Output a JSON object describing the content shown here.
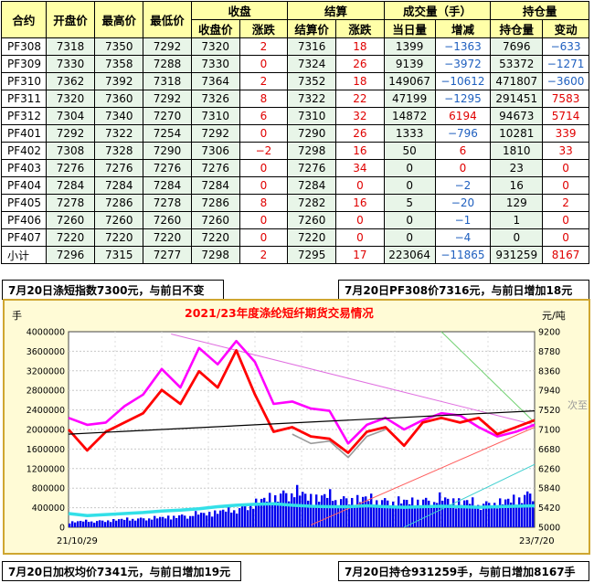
{
  "table": {
    "header_top": {
      "contract": "合约",
      "open": "开盘价",
      "high": "最高价",
      "low": "最低价",
      "close_group": "收盘",
      "settle_group": "结算",
      "volume_group": "成交量（手）",
      "oi_group": "持仓量"
    },
    "header_sub": {
      "close_price": "收盘价",
      "close_change": "涨跌",
      "settle_price": "结算价",
      "settle_change": "涨跌",
      "volume_today": "当日量",
      "volume_change": "增减",
      "oi": "持仓量",
      "oi_change": "变动"
    },
    "rows": [
      {
        "contract": "PF308",
        "open": "7318",
        "high": "7350",
        "low": "7292",
        "close": "7320",
        "close_chg": "2",
        "settle": "7316",
        "settle_chg": "18",
        "vol": "1399",
        "vol_chg": "−1363",
        "oi": "7696",
        "oi_chg": "−633"
      },
      {
        "contract": "PF309",
        "open": "7330",
        "high": "7358",
        "low": "7288",
        "close": "7330",
        "close_chg": "0",
        "settle": "7324",
        "settle_chg": "26",
        "vol": "9139",
        "vol_chg": "−3972",
        "oi": "53372",
        "oi_chg": "−1271"
      },
      {
        "contract": "PF310",
        "open": "7362",
        "high": "7392",
        "low": "7318",
        "close": "7364",
        "close_chg": "2",
        "settle": "7352",
        "settle_chg": "18",
        "vol": "149067",
        "vol_chg": "−10612",
        "oi": "471807",
        "oi_chg": "−3600"
      },
      {
        "contract": "PF311",
        "open": "7320",
        "high": "7360",
        "low": "7292",
        "close": "7326",
        "close_chg": "8",
        "settle": "7322",
        "settle_chg": "22",
        "vol": "47199",
        "vol_chg": "−1295",
        "oi": "291451",
        "oi_chg": "7583"
      },
      {
        "contract": "PF312",
        "open": "7304",
        "high": "7340",
        "low": "7270",
        "close": "7310",
        "close_chg": "6",
        "settle": "7310",
        "settle_chg": "32",
        "vol": "14872",
        "vol_chg": "6194",
        "oi": "94673",
        "oi_chg": "5714"
      },
      {
        "contract": "PF401",
        "open": "7292",
        "high": "7322",
        "low": "7254",
        "close": "7292",
        "close_chg": "0",
        "settle": "7290",
        "settle_chg": "26",
        "vol": "1333",
        "vol_chg": "−796",
        "oi": "10281",
        "oi_chg": "339"
      },
      {
        "contract": "PF402",
        "open": "7308",
        "high": "7328",
        "low": "7290",
        "close": "7306",
        "close_chg": "−2",
        "settle": "7298",
        "settle_chg": "16",
        "vol": "50",
        "vol_chg": "6",
        "oi": "1810",
        "oi_chg": "33"
      },
      {
        "contract": "PF403",
        "open": "7276",
        "high": "7276",
        "low": "7276",
        "close": "7276",
        "close_chg": "0",
        "settle": "7276",
        "settle_chg": "34",
        "vol": "0",
        "vol_chg": "0",
        "oi": "23",
        "oi_chg": "0"
      },
      {
        "contract": "PF404",
        "open": "7284",
        "high": "7284",
        "low": "7284",
        "close": "7284",
        "close_chg": "0",
        "settle": "7284",
        "settle_chg": "0",
        "vol": "0",
        "vol_chg": "−2",
        "oi": "16",
        "oi_chg": "0"
      },
      {
        "contract": "PF405",
        "open": "7278",
        "high": "7286",
        "low": "7278",
        "close": "7286",
        "close_chg": "8",
        "settle": "7282",
        "settle_chg": "16",
        "vol": "5",
        "vol_chg": "−20",
        "oi": "129",
        "oi_chg": "2"
      },
      {
        "contract": "PF406",
        "open": "7260",
        "high": "7260",
        "low": "7260",
        "close": "7260",
        "close_chg": "0",
        "settle": "7260",
        "settle_chg": "0",
        "vol": "0",
        "vol_chg": "−1",
        "oi": "1",
        "oi_chg": "0"
      },
      {
        "contract": "PF407",
        "open": "7220",
        "high": "7220",
        "low": "7220",
        "close": "7220",
        "close_chg": "0",
        "settle": "7220",
        "settle_chg": "0",
        "vol": "0",
        "vol_chg": "−4",
        "oi": "0",
        "oi_chg": "0"
      },
      {
        "contract": "小计",
        "open": "7296",
        "high": "7315",
        "low": "7277",
        "close": "7298",
        "close_chg": "2",
        "settle": "7295",
        "settle_chg": "17",
        "vol": "223064",
        "vol_chg": "−11865",
        "oi": "931259",
        "oi_chg": "8167"
      }
    ]
  },
  "banners": {
    "top_left": "7月20日涤短指数7300元，与前日不变",
    "top_right": "7月20日PF308价7316元，与前日增加18元",
    "bottom_left": "7月20日加权均价7341元，与前日增加19元",
    "bottom_right": "7月20日持仓931259手，与前日增加8167手"
  },
  "tooltip_fragment": "次至",
  "colors": {
    "header_bg": "#ffffa8",
    "chart_bg": "#fffbd6",
    "price_red": "#ff0000",
    "magenta": "#ff00ff",
    "gray_line": "#9a9a9a",
    "volume_blue": "#0000ee",
    "oi_cyan": "#33e0e8",
    "trend_black": "#000000"
  },
  "chart_data": {
    "type": "line",
    "title": "2021/23年度涤纶短纤期货交易情况",
    "left_axis_unit": "手",
    "right_axis_unit": "元/吨",
    "left_ticks": [
      "0",
      "400000",
      "800000",
      "1200000",
      "1600000",
      "2000000",
      "2400000",
      "2800000",
      "3200000",
      "3600000",
      "4000000"
    ],
    "right_ticks": [
      "5000",
      "5420",
      "5840",
      "6260",
      "6680",
      "7100",
      "7520",
      "7940",
      "8360",
      "8780",
      "9200"
    ],
    "left_range": [
      0,
      4000000
    ],
    "right_range": [
      5000,
      9200
    ],
    "x_labels": [
      "21/10/29",
      "23/7/20"
    ],
    "x": [
      0,
      4,
      8,
      12,
      16,
      20,
      24,
      28,
      32,
      36,
      40,
      44,
      48,
      52,
      56,
      60,
      64,
      68,
      72,
      76,
      80,
      84,
      88,
      92,
      96,
      100
    ],
    "series": [
      {
        "values": [
          7100,
          6650,
          7050,
          7250,
          7450,
          7950,
          7650,
          8350,
          8000,
          8800,
          7850,
          7050,
          7150,
          6950,
          6900,
          6600,
          7050,
          7150,
          6750,
          7250,
          7350,
          7250,
          7350,
          7000,
          7150,
          7300
        ]
      },
      {
        "values": [
          7350,
          7200,
          7250,
          7600,
          7850,
          8400,
          8000,
          8850,
          8500,
          9000,
          8550,
          7650,
          7700,
          7550,
          7500,
          6800,
          7200,
          7350,
          7100,
          7300,
          7450,
          7400,
          7150,
          6950,
          7050,
          7200
        ]
      },
      {
        "values": [
          null,
          null,
          null,
          null,
          null,
          null,
          null,
          null,
          null,
          null,
          null,
          null,
          7000,
          6800,
          6850,
          6500,
          6950,
          7100,
          null,
          null,
          null,
          null,
          null,
          null,
          null,
          null
        ]
      },
      {
        "values": [
          140000,
          160000,
          170000,
          210000,
          230000,
          250000,
          300000,
          340000,
          400000,
          470000,
          620000,
          800000,
          930000,
          780000,
          790000,
          720000,
          740000,
          690000,
          660000,
          690000,
          720000,
          680000,
          610000,
          620000,
          720000,
          900000
        ]
      },
      {
        "values": [
          280000,
          240000,
          260000,
          280000,
          300000,
          330000,
          350000,
          380000,
          420000,
          450000,
          470000,
          480000,
          450000,
          430000,
          420000,
          420000,
          440000,
          420000,
          410000,
          420000,
          430000,
          420000,
          410000,
          420000,
          430000,
          440000
        ]
      }
    ],
    "trend_line": {
      "x": [
        0,
        100
      ],
      "values": [
        7000,
        7500
      ]
    },
    "guide_lines": [
      {
        "color": "#e070e0",
        "x": [
          22,
          100
        ],
        "values": [
          9150,
          7200
        ]
      },
      {
        "color": "#ff6060",
        "x": [
          52,
          100
        ],
        "values": [
          5050,
          7150
        ]
      },
      {
        "color": "#70d070",
        "x": [
          80,
          100
        ],
        "values": [
          9200,
          7250
        ]
      },
      {
        "color": "#40d0d0",
        "x": [
          72,
          100
        ],
        "values": [
          5000,
          6350
        ]
      }
    ]
  }
}
